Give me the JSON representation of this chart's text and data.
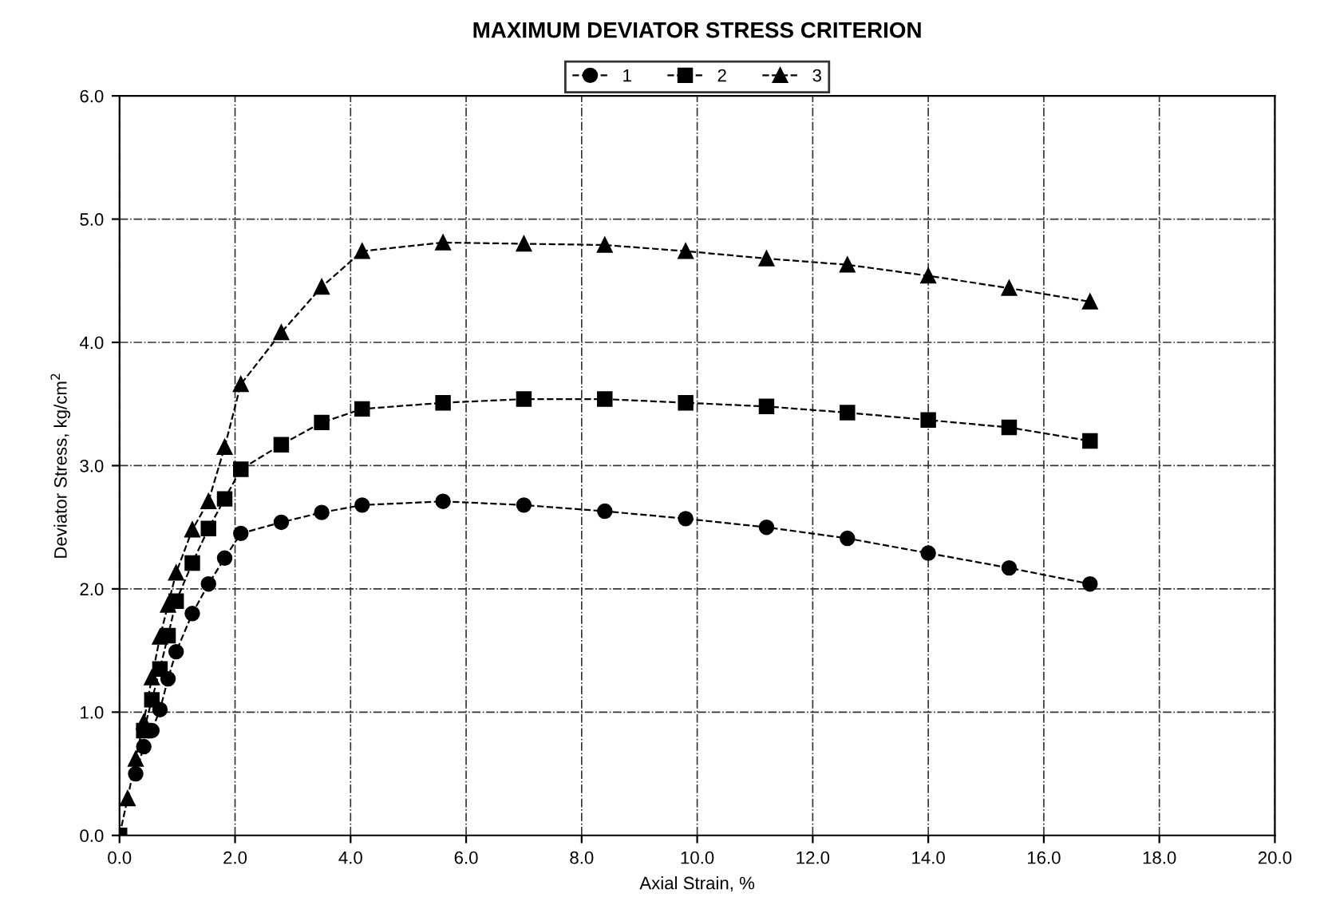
{
  "chart_data": {
    "type": "line",
    "title": "MAXIMUM DEVIATOR STRESS CRITERION",
    "xlabel": "Axial Strain, %",
    "ylabel": "Deviator Stress, kg/cm$^{2}$",
    "x": [
      0,
      0.14,
      0.28,
      0.42,
      0.56,
      0.7,
      0.84,
      0.98,
      1.26,
      1.54,
      1.82,
      2.1,
      2.8,
      3.5,
      4.2,
      5.6,
      7.0,
      8.4,
      9.8,
      11.2,
      12.6,
      14.0,
      15.4,
      16.8
    ],
    "series": [
      {
        "name": "1",
        "color": "#000000",
        "marker": "circle",
        "line_style": "dashed",
        "values": [
          null,
          null,
          0.5,
          0.72,
          0.85,
          1.02,
          1.27,
          1.49,
          1.8,
          2.04,
          2.25,
          2.45,
          2.54,
          2.62,
          2.68,
          2.71,
          2.68,
          2.63,
          2.57,
          2.5,
          2.41,
          2.29,
          2.17,
          2.04
        ]
      },
      {
        "name": "2",
        "color": "#000000",
        "marker": "square",
        "line_style": "dashed",
        "values": [
          0,
          null,
          null,
          0.85,
          1.1,
          1.35,
          1.62,
          1.9,
          2.21,
          2.49,
          2.73,
          2.97,
          3.17,
          3.35,
          3.46,
          3.51,
          3.54,
          3.54,
          3.51,
          3.48,
          3.43,
          3.37,
          3.31,
          3.2
        ]
      },
      {
        "name": "3",
        "color": "#000000",
        "marker": "triangle",
        "line_style": "dashed",
        "values": [
          0,
          0.3,
          0.62,
          0.92,
          1.28,
          1.61,
          1.87,
          2.13,
          2.48,
          2.71,
          3.15,
          3.66,
          4.08,
          4.45,
          4.74,
          4.81,
          4.8,
          4.79,
          4.74,
          4.68,
          4.63,
          4.54,
          4.44,
          4.33
        ]
      }
    ],
    "xlim": [
      0,
      20
    ],
    "xticks": [
      {
        "value": 0,
        "label": "0.0"
      },
      {
        "value": 2,
        "label": "2.0"
      },
      {
        "value": 4,
        "label": "4.0"
      },
      {
        "value": 6,
        "label": "6.0"
      },
      {
        "value": 8,
        "label": "8.0"
      },
      {
        "value": 10,
        "label": "10.0"
      },
      {
        "value": 12,
        "label": "12.0"
      },
      {
        "value": 14,
        "label": "14.0"
      },
      {
        "value": 16,
        "label": "16.0"
      },
      {
        "value": 18,
        "label": "18.0"
      },
      {
        "value": 20,
        "label": "20.0"
      }
    ],
    "ylim": [
      0,
      6
    ],
    "yticks": [
      {
        "value": 0,
        "label": "0.0"
      },
      {
        "value": 1,
        "label": "1.0"
      },
      {
        "value": 2,
        "label": "2.0"
      },
      {
        "value": 3,
        "label": "3.0"
      },
      {
        "value": 4,
        "label": "4.0"
      },
      {
        "value": 5,
        "label": "5.0"
      },
      {
        "value": 6,
        "label": "6.0"
      }
    ],
    "grid": true,
    "legend": "top"
  }
}
